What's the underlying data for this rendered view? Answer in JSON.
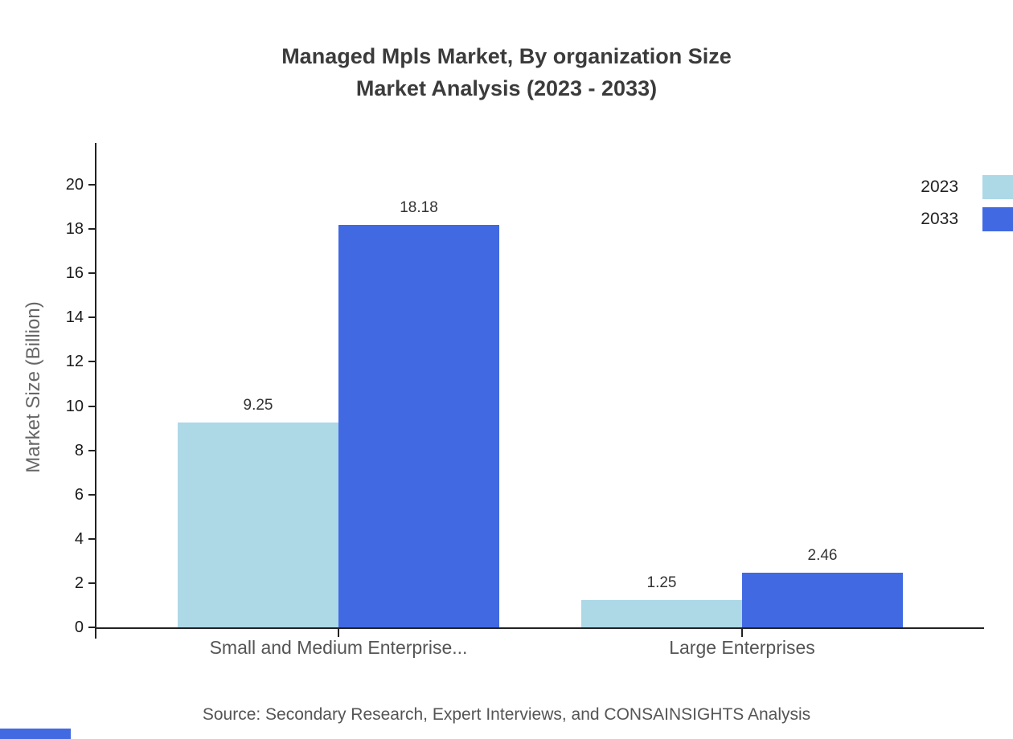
{
  "title": {
    "line1": "Managed Mpls Market, By organization Size",
    "line2": "Market Analysis (2023 - 2033)"
  },
  "source": "Source: Secondary Research, Expert Interviews, and CONSAINSIGHTS Analysis",
  "colors": {
    "series_2023": "#ADD8E6",
    "series_2033": "#4169E1",
    "axis": "#222222"
  },
  "chart_data": {
    "type": "bar",
    "title": "Managed Mpls Market, By organization Size — Market Analysis (2023 - 2033)",
    "categories": [
      "Small and Medium Enterprise...",
      "Large Enterprises"
    ],
    "series": [
      {
        "name": "2023",
        "color": "#ADD8E6",
        "values": [
          9.25,
          1.25
        ]
      },
      {
        "name": "2033",
        "color": "#4169E1",
        "values": [
          18.18,
          2.46
        ]
      }
    ],
    "xlabel": "",
    "ylabel": "Market Size (Billion)",
    "ylim": [
      0,
      20
    ],
    "yticks": [
      0,
      2,
      4,
      6,
      8,
      10,
      12,
      14,
      16,
      18,
      20
    ],
    "grid": false,
    "legend_position": "top-right",
    "value_labels": true
  }
}
